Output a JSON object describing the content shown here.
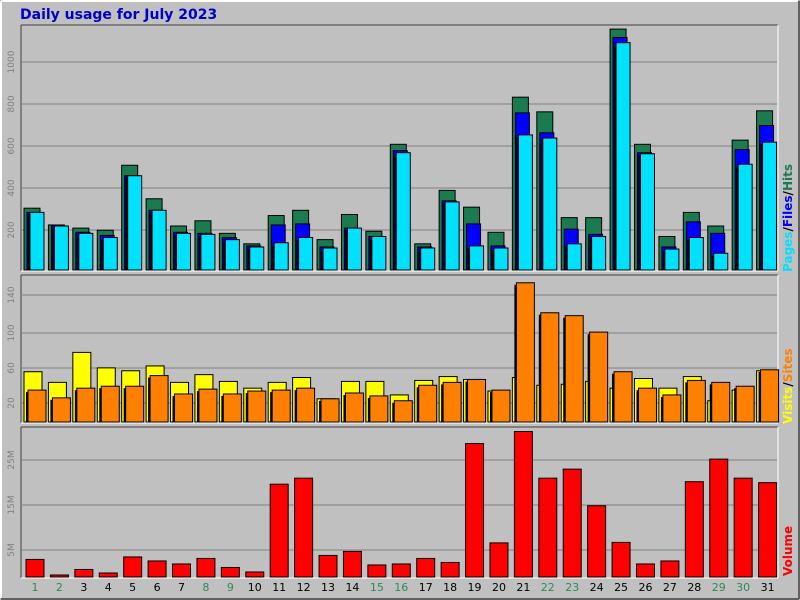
{
  "title": "Daily usage for July 2023",
  "colors": {
    "background": "#c0c0c0",
    "title": "#0000cc",
    "hits": "#1a7a50",
    "files": "#0000ff",
    "pages": "#00e0ff",
    "sites": "#ff8000",
    "visits": "#ffff00",
    "volume": "#ff0000",
    "weekend_label": "#2e8b57",
    "weekday_label": "#000000"
  },
  "chart_data": [
    {
      "type": "bar",
      "panel": "hits-files-pages",
      "ylabel_parts": [
        "Pages",
        "/",
        "Files",
        "/",
        "Hits"
      ],
      "yticks": [
        "200",
        "400",
        "600",
        "800",
        "1000"
      ],
      "ylim": [
        0,
        1160
      ],
      "categories": [
        "1",
        "2",
        "3",
        "4",
        "5",
        "6",
        "7",
        "8",
        "9",
        "10",
        "11",
        "12",
        "13",
        "14",
        "15",
        "16",
        "17",
        "18",
        "19",
        "20",
        "21",
        "22",
        "23",
        "24",
        "25",
        "26",
        "27",
        "28",
        "29",
        "30",
        "31"
      ],
      "series": [
        {
          "name": "Hits",
          "values": [
            295,
            215,
            200,
            190,
            500,
            340,
            210,
            235,
            175,
            125,
            260,
            285,
            145,
            265,
            185,
            600,
            125,
            380,
            300,
            180,
            825,
            755,
            250,
            250,
            1150,
            600,
            160,
            275,
            210,
            620,
            760
          ]
        },
        {
          "name": "Files",
          "values": [
            275,
            210,
            180,
            165,
            450,
            285,
            180,
            175,
            155,
            115,
            215,
            220,
            110,
            200,
            160,
            570,
            110,
            330,
            220,
            115,
            750,
            655,
            195,
            170,
            1110,
            560,
            110,
            230,
            175,
            575,
            690
          ]
        },
        {
          "name": "Pages",
          "values": [
            275,
            210,
            175,
            155,
            450,
            285,
            175,
            170,
            145,
            110,
            130,
            155,
            105,
            200,
            160,
            560,
            105,
            325,
            115,
            105,
            645,
            630,
            125,
            160,
            1085,
            555,
            100,
            155,
            80,
            505,
            610
          ]
        }
      ]
    },
    {
      "type": "bar",
      "panel": "visits-sites",
      "ylabel_parts": [
        "Visits",
        "/",
        "Sites"
      ],
      "yticks": [
        "20",
        "60",
        "100",
        "140"
      ],
      "ylim": [
        0,
        150
      ],
      "categories": [
        "1",
        "2",
        "3",
        "4",
        "5",
        "6",
        "7",
        "8",
        "9",
        "10",
        "11",
        "12",
        "13",
        "14",
        "15",
        "16",
        "17",
        "18",
        "19",
        "20",
        "21",
        "22",
        "23",
        "24",
        "25",
        "26",
        "27",
        "28",
        "29",
        "30",
        "31"
      ],
      "series": [
        {
          "name": "Visits",
          "values": [
            52,
            41,
            72,
            56,
            53,
            58,
            41,
            49,
            42,
            35,
            41,
            46,
            24,
            42,
            42,
            28,
            43,
            47,
            44,
            32,
            46,
            38,
            39,
            42,
            35,
            45,
            35,
            47,
            22,
            33,
            53
          ]
        },
        {
          "name": "Sites",
          "values": [
            33,
            25,
            35,
            37,
            37,
            48,
            29,
            34,
            29,
            32,
            33,
            35,
            24,
            30,
            27,
            22,
            38,
            41,
            44,
            33,
            144,
            113,
            110,
            93,
            52,
            35,
            28,
            43,
            41,
            37,
            54
          ]
        }
      ]
    },
    {
      "type": "bar",
      "panel": "volume",
      "ylabel": "Volume",
      "yticks": [
        "5M",
        "15M",
        "25M"
      ],
      "ylim": [
        0,
        29.5
      ],
      "categories": [
        "1",
        "2",
        "3",
        "4",
        "5",
        "6",
        "7",
        "8",
        "9",
        "10",
        "11",
        "12",
        "13",
        "14",
        "15",
        "16",
        "17",
        "18",
        "19",
        "20",
        "21",
        "22",
        "23",
        "24",
        "25",
        "26",
        "27",
        "28",
        "29",
        "30",
        "31"
      ],
      "weekend_days": [
        "1",
        "2",
        "8",
        "9",
        "15",
        "16",
        "22",
        "23",
        "29",
        "30"
      ],
      "series": [
        {
          "name": "Volume",
          "unit": "MB",
          "values": [
            3.5,
            0.4,
            1.5,
            0.8,
            4.0,
            3.2,
            2.6,
            3.7,
            1.9,
            1.0,
            18.5,
            19.7,
            4.3,
            5.1,
            2.4,
            2.6,
            3.7,
            2.9,
            26.6,
            6.8,
            29.0,
            19.7,
            21.5,
            14.2,
            6.9,
            2.6,
            3.2,
            19.0,
            23.5,
            19.7,
            18.8
          ]
        }
      ]
    }
  ]
}
